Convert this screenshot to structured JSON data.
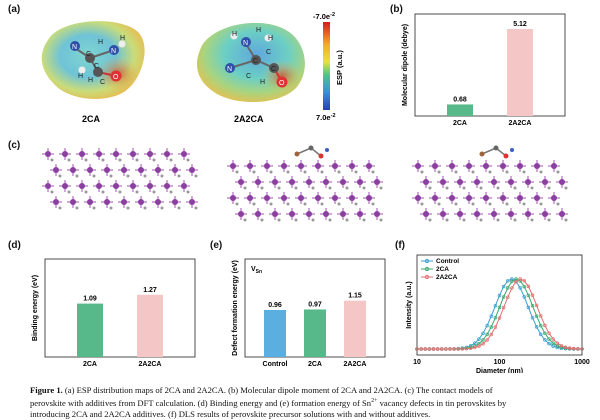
{
  "panels": {
    "a": {
      "label": "(a)",
      "molecule_labels": [
        "2CA",
        "2A2CA"
      ],
      "colorbar": {
        "top": "-7.0e",
        "top_exp": "-2",
        "bottom": "7.0e",
        "bottom_exp": "-2",
        "axis_label": "ESP (a.u.)"
      },
      "mol1_atoms": [
        "N",
        "C",
        "H",
        "N",
        "H",
        "C",
        "H",
        "H",
        "C",
        "O"
      ],
      "mol2_atoms": [
        "H",
        "N",
        "H",
        "H",
        "C",
        "N",
        "C",
        "C",
        "H",
        "C",
        "O"
      ]
    },
    "b": {
      "label": "(b)"
    },
    "c": {
      "label": "(c)"
    },
    "d": {
      "label": "(d)"
    },
    "e": {
      "label": "(e)",
      "inset": "V",
      "inset_sub": "Sn"
    },
    "f": {
      "label": "(f)"
    }
  },
  "chart_data": [
    {
      "id": "b",
      "type": "bar",
      "categories": [
        "2CA",
        "2A2CA"
      ],
      "values": [
        0.68,
        5.12
      ],
      "value_labels": [
        "0.68",
        "5.12"
      ],
      "ylabel": "Molecular dipole (debye)",
      "ylim": [
        0,
        6
      ],
      "colors": [
        "#57b889",
        "#f4c6c6"
      ]
    },
    {
      "id": "d",
      "type": "bar",
      "categories": [
        "2CA",
        "2A2CA"
      ],
      "values": [
        1.09,
        1.27
      ],
      "value_labels": [
        "1.09",
        "1.27"
      ],
      "ylabel": "Binding energy (eV)",
      "ylim": [
        0,
        2
      ],
      "colors": [
        "#57b889",
        "#f4c6c6"
      ]
    },
    {
      "id": "e",
      "type": "bar",
      "categories": [
        "Control",
        "2CA",
        "2A2CA"
      ],
      "values": [
        0.96,
        0.97,
        1.15
      ],
      "value_labels": [
        "0.96",
        "0.97",
        "1.15"
      ],
      "ylabel": "Defect formation energy (eV)",
      "ylim": [
        0,
        2
      ],
      "colors": [
        "#5aaee0",
        "#57b889",
        "#f4c6c6"
      ]
    },
    {
      "id": "f",
      "type": "line",
      "xscale": "log",
      "xlim": [
        10,
        1000
      ],
      "xticks": [
        10,
        100,
        1000
      ],
      "xtick_labels": [
        "10",
        "100",
        "1000"
      ],
      "xlabel": "Diameter (nm)",
      "ylabel": "Intensity (a.u.)",
      "legend": "top-left",
      "series": [
        {
          "name": "Control",
          "color": "#3a9fd0",
          "marker": "circle",
          "peak": 140
        },
        {
          "name": "2CA",
          "color": "#3aa86f",
          "marker": "circle",
          "peak": 160
        },
        {
          "name": "2A2CA",
          "color": "#e07070",
          "marker": "circle",
          "peak": 180
        }
      ]
    }
  ],
  "caption": {
    "fig_label": "Figure 1.",
    "line1": " (a) ESP distribution maps of 2CA and 2A2CA. (b) Molecular dipole moment of 2CA and 2A2CA. (c) The contact models of",
    "line2": "perovskite with additives from DFT calculation. (d) Binding energy and (e) formation energy of Sn",
    "line2_sup": "2+",
    "line2_end": " vacancy defects in tin perovskites by",
    "line3": "introducing 2CA and 2A2CA additives. (f) DLS results of perovskite precursor solutions with and without additives."
  }
}
